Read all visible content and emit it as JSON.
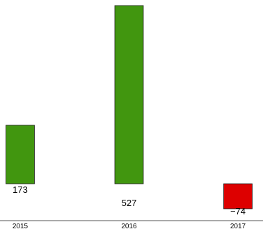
{
  "chart_data": {
    "type": "bar",
    "title": "",
    "xlabel": "",
    "ylabel": "",
    "categories": [
      "2015",
      "2016",
      "2017"
    ],
    "values": [
      173,
      527,
      -74
    ],
    "value_labels": [
      "173",
      "527",
      "−74"
    ],
    "ylim": [
      -74,
      527
    ],
    "grid": false,
    "legend": "none",
    "colors": {
      "positive": "#41960f",
      "negative": "#dd0000",
      "bar_stroke": "#1f1f1f",
      "axis": "#555555"
    }
  }
}
